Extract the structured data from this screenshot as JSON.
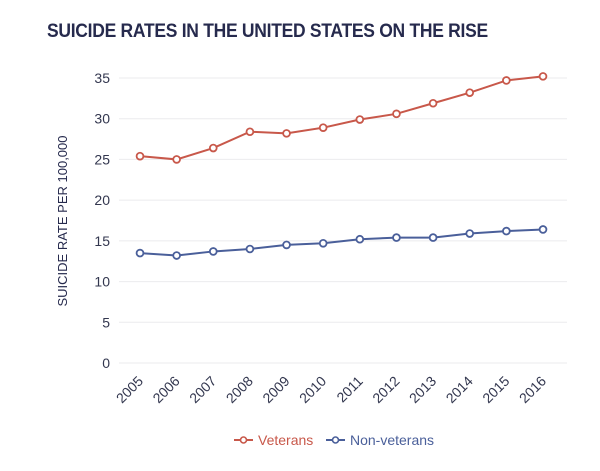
{
  "chart_data": {
    "type": "line",
    "title": "SUICIDE RATES IN THE UNITED STATES ON THE RISE",
    "xlabel": "",
    "ylabel": "SUICIDE RATE PER 100,000",
    "ylim": [
      0,
      35
    ],
    "yticks": [
      "0",
      "5",
      "10",
      "15",
      "20",
      "25",
      "30",
      "35"
    ],
    "grid": true,
    "legend_position": "bottom-center",
    "categories": [
      "2005",
      "2006",
      "2007",
      "2008",
      "2009",
      "2010",
      "2011",
      "2012",
      "2013",
      "2014",
      "2015",
      "2016"
    ],
    "series": [
      {
        "name": "Veterans",
        "color": "#c8584a",
        "values": [
          25.4,
          25.0,
          26.4,
          28.4,
          28.2,
          28.9,
          29.9,
          30.6,
          31.9,
          33.2,
          34.7,
          35.2
        ]
      },
      {
        "name": "Non-veterans",
        "color": "#4a5f9a",
        "values": [
          13.5,
          13.2,
          13.7,
          14.0,
          14.5,
          14.7,
          15.2,
          15.4,
          15.4,
          15.9,
          16.2,
          16.4
        ]
      }
    ]
  }
}
